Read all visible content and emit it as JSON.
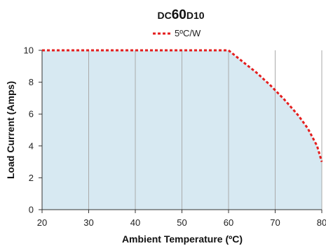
{
  "chart_data": {
    "type": "area",
    "title_parts": [
      "DC",
      "60",
      "D10"
    ],
    "xlabel": "Ambient Temperature (ºC)",
    "ylabel": "Load Current (Amps)",
    "xlim": [
      20,
      80
    ],
    "ylim": [
      0,
      10
    ],
    "x_ticks": [
      "20",
      "30",
      "40",
      "50",
      "60",
      "70",
      "80"
    ],
    "y_ticks": [
      "0",
      "2",
      "4",
      "6",
      "8",
      "10"
    ],
    "grid": true,
    "legend_position": "top-center",
    "series": [
      {
        "name": "5ºC/W",
        "color": "#e41e1e",
        "style": "dotted",
        "points": [
          [
            20,
            10
          ],
          [
            30,
            10
          ],
          [
            40,
            10
          ],
          [
            50,
            10
          ],
          [
            60,
            10
          ],
          [
            63,
            9.3
          ],
          [
            66,
            8.6
          ],
          [
            69,
            7.8
          ],
          [
            72,
            6.9
          ],
          [
            75,
            5.9
          ],
          [
            77,
            5.1
          ],
          [
            79,
            4.0
          ],
          [
            80,
            3.0
          ]
        ]
      }
    ],
    "fill_color": "#d7e9f2",
    "grid_color": "#aaaaaa"
  }
}
